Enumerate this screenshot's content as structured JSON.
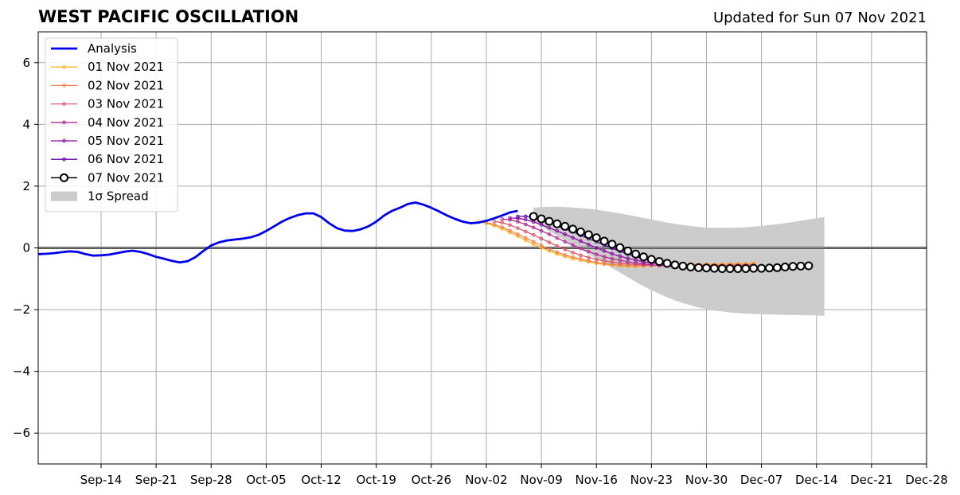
{
  "chart_data": {
    "type": "line",
    "title": "WEST PACIFIC OSCILLATION",
    "subtitle": "Updated for Sun 07 Nov 2021",
    "xlabel": "",
    "ylabel": "",
    "x_axis_start": "2021-09-06",
    "x_axis_end": "2021-12-28",
    "ylim": [
      -7,
      7
    ],
    "yticks": [
      -6,
      -4,
      -2,
      0,
      2,
      4,
      6
    ],
    "ytick_labels": [
      "−6",
      "−4",
      "−2",
      "0",
      "2",
      "4",
      "6"
    ],
    "xticks": [
      "2021-09-14",
      "2021-09-21",
      "2021-09-28",
      "2021-10-05",
      "2021-10-12",
      "2021-10-19",
      "2021-10-26",
      "2021-11-02",
      "2021-11-09",
      "2021-11-16",
      "2021-11-23",
      "2021-11-30",
      "2021-12-07",
      "2021-12-14",
      "2021-12-21",
      "2021-12-28"
    ],
    "xtick_labels": [
      "Sep-14",
      "Sep-21",
      "Sep-28",
      "Oct-05",
      "Oct-12",
      "Oct-19",
      "Oct-26",
      "Nov-02",
      "Nov-09",
      "Nov-16",
      "Nov-23",
      "Nov-30",
      "Dec-07",
      "Dec-14",
      "Dec-21",
      "Dec-28"
    ],
    "grid": true,
    "legend_position": "top-left",
    "legend": [
      {
        "label": "Analysis",
        "kind": "line",
        "color": "#0000ee"
      },
      {
        "label": "01 Nov 2021",
        "kind": "dotline",
        "color": "#fdb42f"
      },
      {
        "label": "02 Nov 2021",
        "kind": "dotline",
        "color": "#f1844b"
      },
      {
        "label": "03 Nov 2021",
        "kind": "dotline",
        "color": "#d8576b"
      },
      {
        "label": "04 Nov 2021",
        "kind": "dotline",
        "color": "#b12a90"
      },
      {
        "label": "05 Nov 2021",
        "kind": "dotline",
        "color": "#8b0aa5"
      },
      {
        "label": "06 Nov 2021",
        "kind": "dotline",
        "color": "#5c01a6"
      },
      {
        "label": "07 Nov 2021",
        "kind": "circle",
        "color": "#000000"
      },
      {
        "label": "1σ Spread",
        "kind": "patch",
        "color": "#cccccc"
      }
    ],
    "analysis": {
      "name": "Analysis",
      "color": "#0000ee",
      "start_date": "2021-09-06",
      "values": [
        -0.2,
        -0.19,
        -0.17,
        -0.14,
        -0.11,
        -0.13,
        -0.2,
        -0.25,
        -0.24,
        -0.22,
        -0.17,
        -0.12,
        -0.09,
        -0.13,
        -0.2,
        -0.29,
        -0.35,
        -0.42,
        -0.47,
        -0.43,
        -0.3,
        -0.1,
        0.08,
        0.18,
        0.24,
        0.27,
        0.3,
        0.34,
        0.42,
        0.55,
        0.7,
        0.85,
        0.97,
        1.06,
        1.12,
        1.12,
        1.0,
        0.8,
        0.64,
        0.56,
        0.55,
        0.6,
        0.7,
        0.85,
        1.05,
        1.2,
        1.3,
        1.42,
        1.47,
        1.4,
        1.3,
        1.18,
        1.05,
        0.94,
        0.85,
        0.8,
        0.82,
        0.88,
        0.96,
        1.05,
        1.15,
        1.2
      ]
    },
    "forecasts": [
      {
        "name": "01 Nov 2021",
        "color": "#fdb42f",
        "start_date": "2021-11-01",
        "values": [
          0.85,
          0.8,
          0.72,
          0.62,
          0.5,
          0.38,
          0.25,
          0.12,
          0.0,
          -0.1,
          -0.2,
          -0.28,
          -0.35,
          -0.4,
          -0.45,
          -0.5,
          -0.53,
          -0.56,
          -0.58,
          -0.6,
          -0.6,
          -0.59,
          -0.58,
          -0.57,
          -0.56,
          -0.55,
          -0.55,
          -0.54,
          -0.54,
          -0.53,
          -0.53,
          -0.52,
          -0.52,
          -0.51,
          -0.51,
          -0.5
        ]
      },
      {
        "name": "02 Nov 2021",
        "color": "#f1844b",
        "start_date": "2021-11-02",
        "values": [
          0.82,
          0.76,
          0.67,
          0.56,
          0.44,
          0.32,
          0.2,
          0.08,
          -0.04,
          -0.14,
          -0.23,
          -0.3,
          -0.36,
          -0.42,
          -0.47,
          -0.51,
          -0.54,
          -0.56,
          -0.57,
          -0.58,
          -0.57,
          -0.56,
          -0.56,
          -0.55,
          -0.55,
          -0.55,
          -0.54,
          -0.54,
          -0.54,
          -0.54,
          -0.54,
          -0.53,
          -0.53,
          -0.53,
          -0.52
        ]
      },
      {
        "name": "03 Nov 2021",
        "color": "#d8576b",
        "start_date": "2021-11-03",
        "values": [
          0.86,
          0.82,
          0.74,
          0.64,
          0.53,
          0.42,
          0.3,
          0.18,
          0.06,
          -0.05,
          -0.15,
          -0.24,
          -0.31,
          -0.37,
          -0.42,
          -0.46,
          -0.5,
          -0.52,
          -0.54,
          -0.55,
          -0.56,
          -0.57,
          -0.58,
          -0.58,
          -0.58,
          -0.58,
          -0.58,
          -0.57,
          -0.57,
          -0.57,
          -0.57,
          -0.56,
          -0.56,
          -0.56
        ]
      },
      {
        "name": "04 Nov 2021",
        "color": "#b12a90",
        "start_date": "2021-11-04",
        "values": [
          0.93,
          0.91,
          0.85,
          0.76,
          0.66,
          0.55,
          0.44,
          0.32,
          0.2,
          0.09,
          -0.02,
          -0.12,
          -0.21,
          -0.29,
          -0.35,
          -0.4,
          -0.45,
          -0.49,
          -0.52,
          -0.55,
          -0.57,
          -0.59,
          -0.6,
          -0.61,
          -0.61,
          -0.61,
          -0.61,
          -0.61,
          -0.61,
          -0.61,
          -0.6,
          -0.6,
          -0.6
        ]
      },
      {
        "name": "05 Nov 2021",
        "color": "#8b0aa5",
        "start_date": "2021-11-05",
        "values": [
          0.97,
          0.96,
          0.92,
          0.84,
          0.75,
          0.65,
          0.55,
          0.44,
          0.33,
          0.22,
          0.11,
          0.0,
          -0.1,
          -0.19,
          -0.27,
          -0.34,
          -0.4,
          -0.45,
          -0.49,
          -0.52,
          -0.55,
          -0.58,
          -0.6,
          -0.61,
          -0.62,
          -0.63,
          -0.63,
          -0.63,
          -0.63,
          -0.62,
          -0.62,
          -0.62
        ]
      },
      {
        "name": "06 Nov 2021",
        "color": "#5c01a6",
        "start_date": "2021-11-06",
        "values": [
          1.02,
          1.02,
          0.98,
          0.9,
          0.82,
          0.72,
          0.62,
          0.52,
          0.41,
          0.3,
          0.2,
          0.09,
          -0.01,
          -0.11,
          -0.2,
          -0.28,
          -0.35,
          -0.41,
          -0.46,
          -0.5,
          -0.54,
          -0.57,
          -0.6,
          -0.62,
          -0.63,
          -0.64,
          -0.65,
          -0.65,
          -0.65,
          -0.64,
          -0.64
        ]
      },
      {
        "name": "07 Nov 2021",
        "color": "#000000",
        "start_date": "2021-11-08",
        "values": [
          1.02,
          0.94,
          0.86,
          0.78,
          0.7,
          0.61,
          0.52,
          0.43,
          0.33,
          0.22,
          0.12,
          0.01,
          -0.1,
          -0.2,
          -0.29,
          -0.37,
          -0.44,
          -0.5,
          -0.55,
          -0.59,
          -0.62,
          -0.64,
          -0.65,
          -0.66,
          -0.67,
          -0.67,
          -0.67,
          -0.67,
          -0.66,
          -0.66,
          -0.65,
          -0.64,
          -0.62,
          -0.6,
          -0.59,
          -0.58
        ]
      }
    ],
    "spread": {
      "name": "1σ Spread",
      "color": "#cccccc",
      "start_date": "2021-11-08",
      "upper": [
        1.3,
        1.32,
        1.33,
        1.33,
        1.32,
        1.31,
        1.29,
        1.27,
        1.24,
        1.2,
        1.16,
        1.12,
        1.07,
        1.02,
        0.97,
        0.92,
        0.87,
        0.82,
        0.78,
        0.74,
        0.71,
        0.68,
        0.66,
        0.65,
        0.65,
        0.65,
        0.66,
        0.67,
        0.69,
        0.71,
        0.74,
        0.77,
        0.8,
        0.84,
        0.88,
        0.92,
        0.96,
        1.0
      ],
      "lower": [
        0.85,
        0.7,
        0.55,
        0.4,
        0.25,
        0.1,
        -0.05,
        -0.2,
        -0.35,
        -0.5,
        -0.65,
        -0.8,
        -0.95,
        -1.1,
        -1.24,
        -1.37,
        -1.49,
        -1.6,
        -1.7,
        -1.79,
        -1.86,
        -1.93,
        -1.98,
        -2.03,
        -2.06,
        -2.09,
        -2.11,
        -2.13,
        -2.14,
        -2.15,
        -2.16,
        -2.16,
        -2.17,
        -2.17,
        -2.18,
        -2.18,
        -2.19,
        -2.2
      ]
    }
  }
}
